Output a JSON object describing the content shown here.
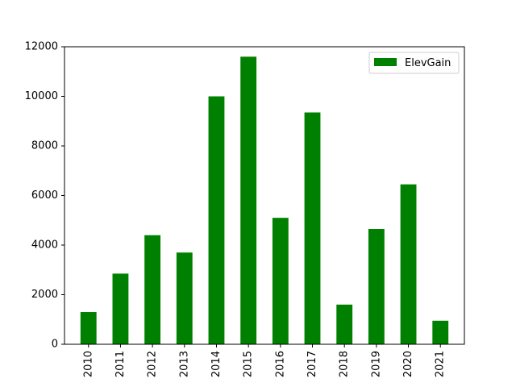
{
  "chart_data": {
    "type": "bar",
    "categories": [
      "2010",
      "2011",
      "2012",
      "2013",
      "2014",
      "2015",
      "2016",
      "2017",
      "2018",
      "2019",
      "2020",
      "2021"
    ],
    "series": [
      {
        "name": "ElevGain",
        "color": "#008000",
        "values": [
          1300,
          2850,
          4400,
          3700,
          10000,
          11600,
          5100,
          9350,
          1600,
          4650,
          6450,
          950
        ]
      }
    ],
    "title": "",
    "xlabel": "",
    "ylabel": "",
    "ylim": [
      0,
      12000
    ],
    "yticks": [
      0,
      2000,
      4000,
      6000,
      8000,
      10000,
      12000
    ],
    "grid": false,
    "legend": {
      "placement": "top-right",
      "entries": [
        "ElevGain"
      ]
    }
  }
}
